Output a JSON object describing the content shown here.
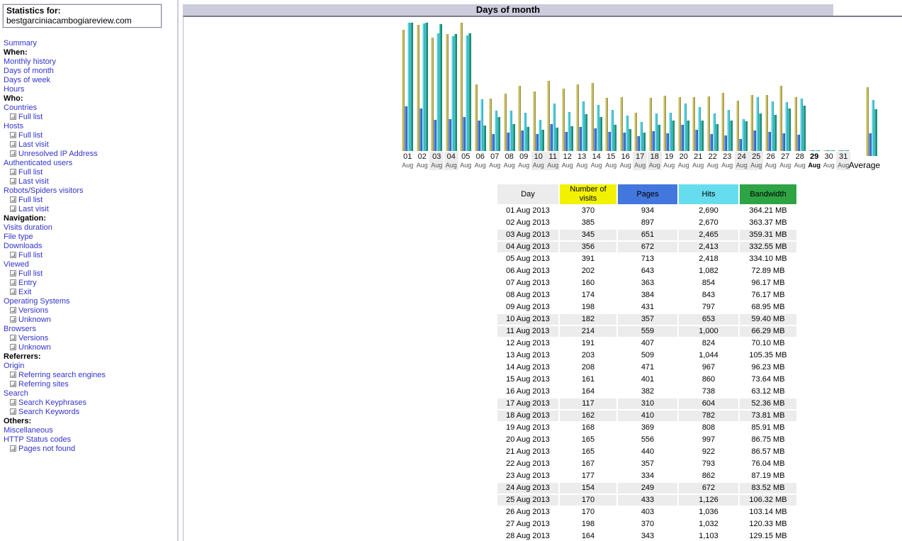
{
  "report": {
    "title": "Days of month"
  },
  "sidebar": {
    "stats_for_label": "Statistics for:",
    "domain": "bestgarciniacambogiareview.com",
    "items": [
      {
        "type": "link",
        "label": "Summary"
      },
      {
        "type": "section",
        "label": "When:"
      },
      {
        "type": "link",
        "label": "Monthly history"
      },
      {
        "type": "link",
        "label": "Days of month"
      },
      {
        "type": "link",
        "label": "Days of week"
      },
      {
        "type": "link",
        "label": "Hours"
      },
      {
        "type": "section",
        "label": "Who:"
      },
      {
        "type": "link",
        "label": "Countries"
      },
      {
        "type": "sub",
        "label": "Full list"
      },
      {
        "type": "link",
        "label": "Hosts"
      },
      {
        "type": "sub",
        "label": "Full list"
      },
      {
        "type": "sub",
        "label": "Last visit"
      },
      {
        "type": "sub",
        "label": "Unresolved IP Address"
      },
      {
        "type": "link",
        "label": "Authenticated users"
      },
      {
        "type": "sub",
        "label": "Full list"
      },
      {
        "type": "sub",
        "label": "Last visit"
      },
      {
        "type": "link",
        "label": "Robots/Spiders visitors"
      },
      {
        "type": "sub",
        "label": "Full list"
      },
      {
        "type": "sub",
        "label": "Last visit"
      },
      {
        "type": "section",
        "label": "Navigation:"
      },
      {
        "type": "link",
        "label": "Visits duration"
      },
      {
        "type": "link",
        "label": "File type"
      },
      {
        "type": "link",
        "label": "Downloads"
      },
      {
        "type": "sub",
        "label": "Full list"
      },
      {
        "type": "link",
        "label": "Viewed"
      },
      {
        "type": "sub",
        "label": "Full list"
      },
      {
        "type": "sub",
        "label": "Entry"
      },
      {
        "type": "sub",
        "label": "Exit"
      },
      {
        "type": "link",
        "label": "Operating Systems"
      },
      {
        "type": "sub",
        "label": "Versions"
      },
      {
        "type": "sub",
        "label": "Unknown"
      },
      {
        "type": "link",
        "label": "Browsers"
      },
      {
        "type": "sub",
        "label": "Versions"
      },
      {
        "type": "sub",
        "label": "Unknown"
      },
      {
        "type": "section",
        "label": "Referrers:"
      },
      {
        "type": "link",
        "label": "Origin"
      },
      {
        "type": "sub",
        "label": "Referring search engines"
      },
      {
        "type": "sub",
        "label": "Referring sites"
      },
      {
        "type": "link",
        "label": "Search"
      },
      {
        "type": "sub",
        "label": "Search Keyphrases"
      },
      {
        "type": "sub",
        "label": "Search Keywords"
      },
      {
        "type": "section",
        "label": "Others:"
      },
      {
        "type": "link",
        "label": "Miscellaneous"
      },
      {
        "type": "link",
        "label": "HTTP Status codes"
      },
      {
        "type": "sub",
        "label": "Pages not found"
      }
    ]
  },
  "chart_data": {
    "type": "bar",
    "title": "Days of month",
    "month_label": "Aug",
    "categories": [
      "01 Aug",
      "02 Aug",
      "03 Aug",
      "04 Aug",
      "05 Aug",
      "06 Aug",
      "07 Aug",
      "08 Aug",
      "09 Aug",
      "10 Aug",
      "11 Aug",
      "12 Aug",
      "13 Aug",
      "14 Aug",
      "15 Aug",
      "16 Aug",
      "17 Aug",
      "18 Aug",
      "19 Aug",
      "20 Aug",
      "21 Aug",
      "22 Aug",
      "23 Aug",
      "24 Aug",
      "25 Aug",
      "26 Aug",
      "27 Aug",
      "28 Aug",
      "29 Aug",
      "30 Aug",
      "31 Aug"
    ],
    "series": [
      {
        "name": "Number of visits",
        "color": "#c6bc66",
        "values": [
          370,
          385,
          345,
          356,
          391,
          202,
          160,
          174,
          198,
          182,
          214,
          191,
          203,
          208,
          161,
          164,
          117,
          162,
          168,
          165,
          165,
          167,
          177,
          154,
          170,
          170,
          198,
          164,
          0,
          0,
          0
        ]
      },
      {
        "name": "Pages",
        "color": "#4477dd",
        "values": [
          934,
          897,
          651,
          672,
          713,
          643,
          363,
          384,
          431,
          357,
          559,
          407,
          509,
          471,
          401,
          382,
          310,
          410,
          369,
          556,
          440,
          357,
          334,
          249,
          433,
          403,
          370,
          343,
          0,
          0,
          0
        ]
      },
      {
        "name": "Hits",
        "color": "#56cee0",
        "values": [
          2690,
          2670,
          2465,
          2413,
          2418,
          1082,
          854,
          843,
          797,
          653,
          1000,
          824,
          1044,
          967,
          860,
          738,
          604,
          782,
          808,
          997,
          922,
          793,
          862,
          672,
          1126,
          1036,
          1032,
          1103,
          0,
          0,
          0
        ]
      },
      {
        "name": "Bandwidth (MB)",
        "color": "#23a18d",
        "values": [
          364.21,
          363.37,
          359.31,
          332.55,
          334.1,
          72.89,
          96.17,
          76.17,
          68.95,
          59.4,
          66.29,
          70.1,
          105.35,
          96.23,
          73.64,
          63.12,
          52.36,
          73.81,
          85.91,
          86.75,
          86.57,
          76.04,
          87.19,
          83.52,
          106.32,
          103.14,
          120.33,
          129.15,
          0,
          0,
          0
        ]
      }
    ],
    "average": {
      "label": "Average",
      "visits": 210,
      "pages": 477,
      "hits": 1181,
      "bandwidth_mb": 131.9
    },
    "weekend_days": [
      3,
      4,
      10,
      11,
      17,
      18,
      24,
      25,
      31
    ],
    "current_day": 29,
    "scaling": {
      "visits_max": 391,
      "pages_hits_max": 2690,
      "bandwidth_max_mb": 364.21
    },
    "ylabel": "",
    "xlabel": "",
    "grid": false,
    "legend_position": "none"
  },
  "table": {
    "headers": [
      "Day",
      "Number of visits",
      "Pages",
      "Hits",
      "Bandwidth"
    ],
    "header_colors": [
      "#ececec",
      "#f2f200",
      "#4477dd",
      "#66ddee",
      "#2ea445"
    ],
    "rows": [
      {
        "day": "01 Aug 2013",
        "visits": "370",
        "pages": "934",
        "hits": "2,690",
        "bandwidth": "364.21 MB",
        "weekend": false
      },
      {
        "day": "02 Aug 2013",
        "visits": "385",
        "pages": "897",
        "hits": "2,670",
        "bandwidth": "363.37 MB",
        "weekend": false
      },
      {
        "day": "03 Aug 2013",
        "visits": "345",
        "pages": "651",
        "hits": "2,465",
        "bandwidth": "359.31 MB",
        "weekend": true
      },
      {
        "day": "04 Aug 2013",
        "visits": "356",
        "pages": "672",
        "hits": "2,413",
        "bandwidth": "332.55 MB",
        "weekend": true
      },
      {
        "day": "05 Aug 2013",
        "visits": "391",
        "pages": "713",
        "hits": "2,418",
        "bandwidth": "334.10 MB",
        "weekend": false
      },
      {
        "day": "06 Aug 2013",
        "visits": "202",
        "pages": "643",
        "hits": "1,082",
        "bandwidth": "72.89 MB",
        "weekend": false
      },
      {
        "day": "07 Aug 2013",
        "visits": "160",
        "pages": "363",
        "hits": "854",
        "bandwidth": "96.17 MB",
        "weekend": false
      },
      {
        "day": "08 Aug 2013",
        "visits": "174",
        "pages": "384",
        "hits": "843",
        "bandwidth": "76.17 MB",
        "weekend": false
      },
      {
        "day": "09 Aug 2013",
        "visits": "198",
        "pages": "431",
        "hits": "797",
        "bandwidth": "68.95 MB",
        "weekend": false
      },
      {
        "day": "10 Aug 2013",
        "visits": "182",
        "pages": "357",
        "hits": "653",
        "bandwidth": "59.40 MB",
        "weekend": true
      },
      {
        "day": "11 Aug 2013",
        "visits": "214",
        "pages": "559",
        "hits": "1,000",
        "bandwidth": "66.29 MB",
        "weekend": true
      },
      {
        "day": "12 Aug 2013",
        "visits": "191",
        "pages": "407",
        "hits": "824",
        "bandwidth": "70.10 MB",
        "weekend": false
      },
      {
        "day": "13 Aug 2013",
        "visits": "203",
        "pages": "509",
        "hits": "1,044",
        "bandwidth": "105.35 MB",
        "weekend": false
      },
      {
        "day": "14 Aug 2013",
        "visits": "208",
        "pages": "471",
        "hits": "967",
        "bandwidth": "96.23 MB",
        "weekend": false
      },
      {
        "day": "15 Aug 2013",
        "visits": "161",
        "pages": "401",
        "hits": "860",
        "bandwidth": "73.64 MB",
        "weekend": false
      },
      {
        "day": "16 Aug 2013",
        "visits": "164",
        "pages": "382",
        "hits": "738",
        "bandwidth": "63.12 MB",
        "weekend": false
      },
      {
        "day": "17 Aug 2013",
        "visits": "117",
        "pages": "310",
        "hits": "604",
        "bandwidth": "52.36 MB",
        "weekend": true
      },
      {
        "day": "18 Aug 2013",
        "visits": "162",
        "pages": "410",
        "hits": "782",
        "bandwidth": "73.81 MB",
        "weekend": true
      },
      {
        "day": "19 Aug 2013",
        "visits": "168",
        "pages": "369",
        "hits": "808",
        "bandwidth": "85.91 MB",
        "weekend": false
      },
      {
        "day": "20 Aug 2013",
        "visits": "165",
        "pages": "556",
        "hits": "997",
        "bandwidth": "86.75 MB",
        "weekend": false
      },
      {
        "day": "21 Aug 2013",
        "visits": "165",
        "pages": "440",
        "hits": "922",
        "bandwidth": "86.57 MB",
        "weekend": false
      },
      {
        "day": "22 Aug 2013",
        "visits": "167",
        "pages": "357",
        "hits": "793",
        "bandwidth": "76.04 MB",
        "weekend": false
      },
      {
        "day": "23 Aug 2013",
        "visits": "177",
        "pages": "334",
        "hits": "862",
        "bandwidth": "87.19 MB",
        "weekend": false
      },
      {
        "day": "24 Aug 2013",
        "visits": "154",
        "pages": "249",
        "hits": "672",
        "bandwidth": "83.52 MB",
        "weekend": true
      },
      {
        "day": "25 Aug 2013",
        "visits": "170",
        "pages": "433",
        "hits": "1,126",
        "bandwidth": "106.32 MB",
        "weekend": true
      },
      {
        "day": "26 Aug 2013",
        "visits": "170",
        "pages": "403",
        "hits": "1,036",
        "bandwidth": "103.14 MB",
        "weekend": false
      },
      {
        "day": "27 Aug 2013",
        "visits": "198",
        "pages": "370",
        "hits": "1,032",
        "bandwidth": "120.33 MB",
        "weekend": false
      },
      {
        "day": "28 Aug 2013",
        "visits": "164",
        "pages": "343",
        "hits": "1,103",
        "bandwidth": "129.15 MB",
        "weekend": false
      }
    ]
  }
}
